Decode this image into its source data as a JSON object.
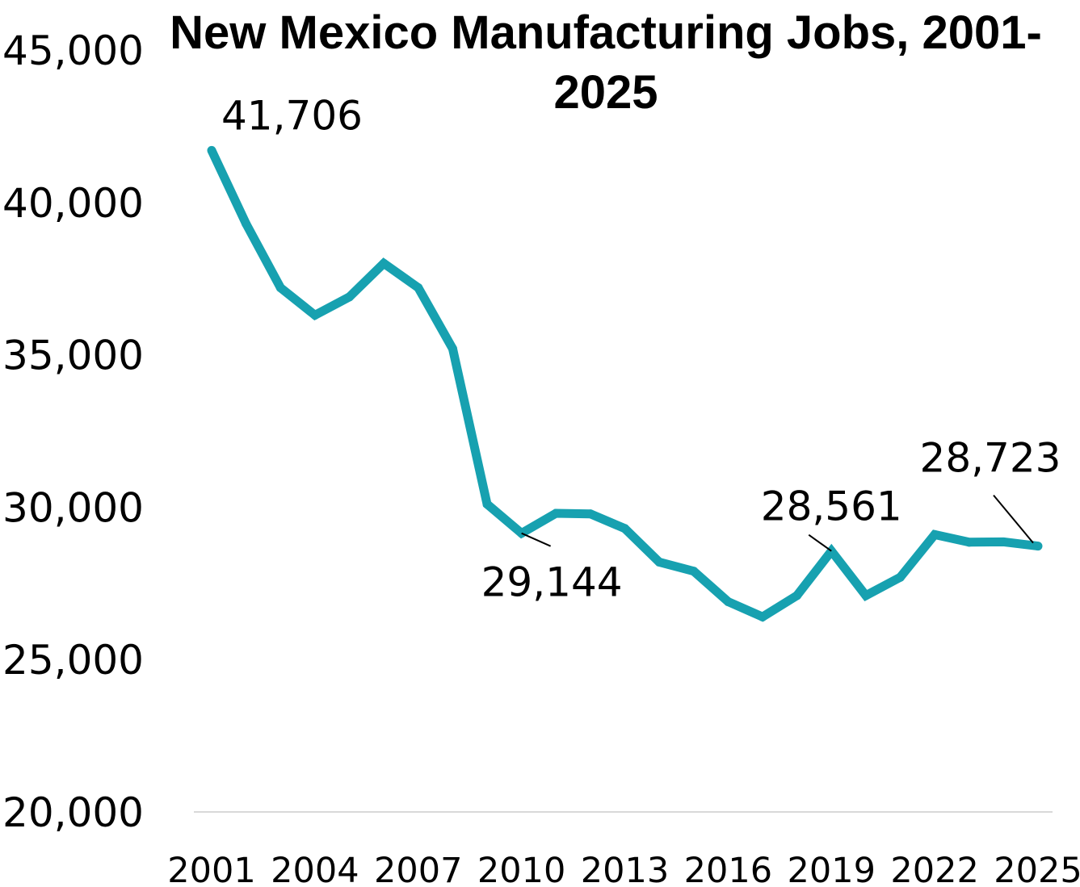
{
  "chart_data": {
    "type": "line",
    "title": "New Mexico Manufacturing Jobs, 2001-2025",
    "xlabel": "",
    "ylabel": "",
    "ylim": [
      20000,
      45000
    ],
    "yticks": [
      "20,000",
      "25,000",
      "30,000",
      "35,000",
      "40,000",
      "45,000"
    ],
    "ytick_values": [
      20000,
      25000,
      30000,
      35000,
      40000,
      45000
    ],
    "xticks": [
      "2001",
      "2004",
      "2007",
      "2010",
      "2013",
      "2016",
      "2019",
      "2022",
      "2025"
    ],
    "x": [
      2001,
      2002,
      2003,
      2004,
      2005,
      2006,
      2007,
      2008,
      2009,
      2010,
      2011,
      2012,
      2013,
      2014,
      2015,
      2016,
      2017,
      2018,
      2019,
      2020,
      2021,
      2022,
      2023,
      2024,
      2025
    ],
    "series": [
      {
        "values": [
          41706,
          39300,
          37200,
          36300,
          36900,
          38000,
          37200,
          35200,
          30100,
          29144,
          29800,
          29780,
          29300,
          28200,
          27900,
          26900,
          26400,
          27100,
          28561,
          27100,
          27700,
          29100,
          28850,
          28860,
          28723
        ],
        "color": "#17a1b0"
      }
    ],
    "annotations": [
      {
        "x": 2001,
        "y": 41706,
        "text": "41,706"
      },
      {
        "x": 2010,
        "y": 29144,
        "text": "29,144"
      },
      {
        "x": 2019,
        "y": 28561,
        "text": "28,561"
      },
      {
        "x": 2025,
        "y": 28723,
        "text": "28,723"
      }
    ],
    "grid": false,
    "legend": "none"
  }
}
